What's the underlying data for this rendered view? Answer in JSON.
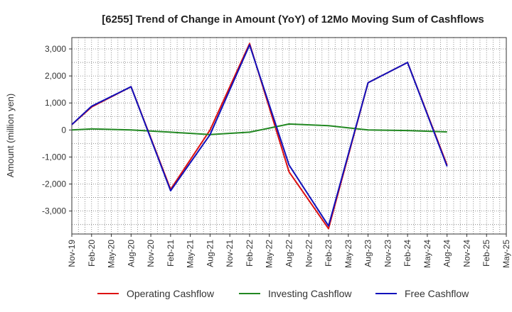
{
  "chart_data": {
    "type": "line",
    "title": "[6255]  Trend of Change in Amount (YoY) of 12Mo Moving Sum of Cashflows",
    "xlabel": "",
    "ylabel": "Amount (million yen)",
    "ylim": [
      -3850,
      3420
    ],
    "yticks": [
      3000,
      2000,
      1000,
      0,
      -1000,
      -2000,
      -3000
    ],
    "ytick_labels": [
      "3,000",
      "2,000",
      "1,000",
      "0",
      "-1,000",
      "-2,000",
      "-3,000"
    ],
    "categories": [
      "Nov-19",
      "Feb-20",
      "May-20",
      "Aug-20",
      "Nov-20",
      "Feb-21",
      "May-21",
      "Aug-21",
      "Nov-21",
      "Feb-22",
      "May-22",
      "Aug-22",
      "Nov-22",
      "Feb-23",
      "May-23",
      "Aug-23",
      "Nov-23",
      "Feb-24",
      "May-24",
      "Aug-24",
      "Nov-24",
      "Feb-25",
      "May-25"
    ],
    "grid": true,
    "legend_position": "bottom",
    "series": [
      {
        "name": "Operating Cashflow",
        "color": "#dd1111",
        "values": [
          200,
          850,
          null,
          1600,
          null,
          -2200,
          null,
          0,
          null,
          3200,
          null,
          -1550,
          null,
          -3650,
          null,
          1750,
          null,
          2500,
          null,
          -1300,
          null,
          null,
          null
        ]
      },
      {
        "name": "Investing Cashflow",
        "color": "#228822",
        "values": [
          0,
          40,
          null,
          0,
          null,
          -80,
          null,
          -170,
          null,
          -80,
          null,
          220,
          null,
          160,
          null,
          0,
          null,
          -20,
          null,
          -70,
          null,
          null,
          null
        ]
      },
      {
        "name": "Free Cashflow",
        "color": "#1111bb",
        "values": [
          200,
          880,
          null,
          1600,
          null,
          -2250,
          null,
          -170,
          null,
          3150,
          null,
          -1300,
          null,
          -3550,
          null,
          1750,
          null,
          2500,
          null,
          -1350,
          null,
          null,
          null
        ]
      }
    ]
  }
}
